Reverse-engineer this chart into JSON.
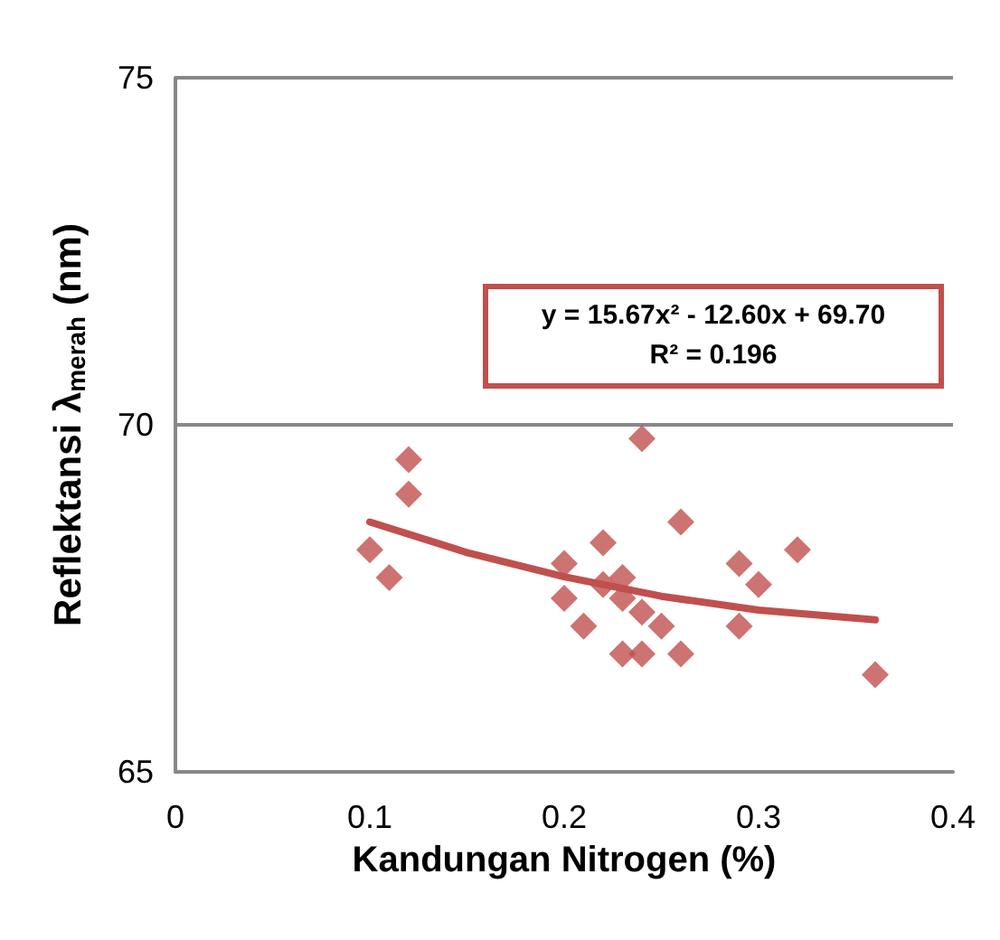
{
  "chart_data": {
    "type": "scatter",
    "xlabel": "Kandungan Nitrogen (%)",
    "ylabel": "Reflektansi λ$_{merah}$ (nm)",
    "xlim": [
      0,
      0.4
    ],
    "xticks": [
      0,
      0.1,
      0.2,
      0.3,
      0.4
    ],
    "ylim": [
      65,
      75
    ],
    "yticks": [
      65,
      70,
      75
    ],
    "grid": "y",
    "marker": "diamond",
    "series": [
      {
        "color": "#c0504d",
        "x": [
          0.1,
          0.11,
          0.12,
          0.12,
          0.2,
          0.2,
          0.21,
          0.22,
          0.22,
          0.23,
          0.23,
          0.23,
          0.24,
          0.24,
          0.24,
          0.25,
          0.26,
          0.26,
          0.29,
          0.29,
          0.3,
          0.32,
          0.36
        ],
        "values": [
          68.2,
          67.8,
          69.5,
          69.0,
          68.0,
          67.5,
          67.1,
          68.3,
          67.7,
          67.8,
          67.5,
          66.7,
          69.8,
          67.3,
          66.7,
          67.1,
          68.6,
          66.7,
          68.0,
          67.1,
          67.7,
          68.2,
          66.4
        ]
      },
      {
        "type": "line",
        "color": "#c0504d",
        "marker": "none",
        "x": [
          0.1,
          0.15,
          0.2,
          0.25,
          0.3,
          0.36
        ],
        "values": [
          68.6,
          68.16,
          67.81,
          67.53,
          67.33,
          67.19
        ]
      }
    ],
    "annotations": [
      "y = 15.67x² - 12.60x + 69.70",
      "R² = 0.196"
    ]
  }
}
